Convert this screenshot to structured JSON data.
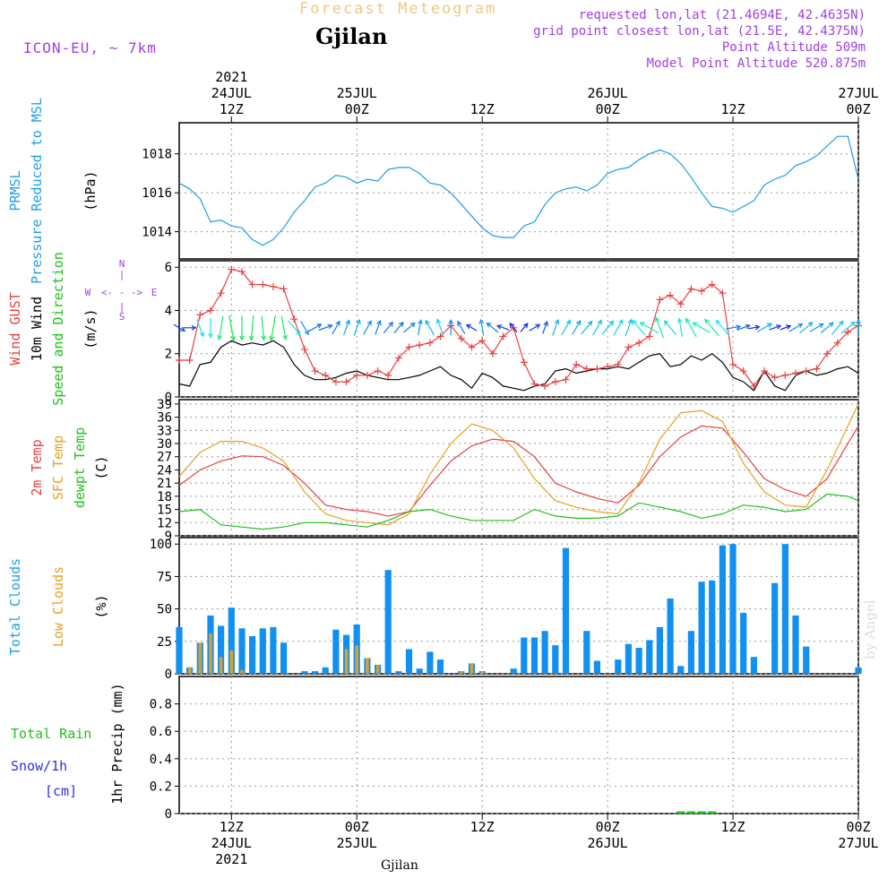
{
  "header": {
    "title": "Forecast Meteogram",
    "location": "Gjilan",
    "model": "ICON-EU, ~ 7km",
    "requested": "requested lon,lat (21.4694E, 42.4635N)",
    "grid_point": "grid point closest lon,lat (21.5E, 42.4375N)",
    "point_altitude": "Point Altitude 509m",
    "model_altitude": "Model Point Altitude 520.875m"
  },
  "footer": {
    "location": "Gjilan",
    "credit": "by Angel"
  },
  "colors": {
    "pressure": "#1e9ee8",
    "gust": "#e84040",
    "wind": "#000000",
    "temp": "#e84040",
    "sfc": "#e8a020",
    "dew": "#20c020",
    "total_cloud": "#1090f0",
    "low_cloud": "#d8a030",
    "rain": "#20c020",
    "snow": "#3030e0",
    "compass": "#a040e0",
    "header_title": "#f0c880",
    "header_info": "#a040e0"
  },
  "compass": {
    "n": "N",
    "s": "S",
    "w": "W",
    "e": "E",
    "arrow_h": "<- - ->"
  },
  "chart_data": [
    {
      "type": "line",
      "title": "Pressure Reduced to MSL",
      "labels": [
        "PRMSL",
        "Pressure Reduced to MSL"
      ],
      "unit": "(hPa)",
      "ylim": [
        1012.6,
        1019.6
      ],
      "yticks": [
        1014,
        1016,
        1018
      ],
      "x_range_hours": [
        -5,
        60
      ],
      "series": [
        {
          "name": "PRMSL",
          "x": [
            -5,
            -4,
            -3,
            -2,
            -1,
            0,
            1,
            2,
            3,
            4,
            5,
            6,
            7,
            8,
            9,
            10,
            11,
            12,
            13,
            14,
            15,
            16,
            17,
            18,
            19,
            20,
            21,
            22,
            23,
            24,
            25,
            26,
            27,
            28,
            29,
            30,
            31,
            32,
            33,
            34,
            35,
            36,
            37,
            38,
            39,
            40,
            41,
            42,
            43,
            44,
            45,
            46,
            47,
            48,
            49,
            50,
            51,
            52,
            53,
            54,
            55,
            56,
            57,
            58,
            59,
            60
          ],
          "values": [
            1016.5,
            1016.2,
            1015.7,
            1014.5,
            1014.6,
            1014.3,
            1014.2,
            1013.6,
            1013.3,
            1013.6,
            1014.2,
            1015.0,
            1015.6,
            1016.3,
            1016.5,
            1016.9,
            1016.8,
            1016.5,
            1016.7,
            1016.6,
            1017.2,
            1017.3,
            1017.3,
            1017.0,
            1016.5,
            1016.4,
            1016.0,
            1015.4,
            1014.8,
            1014.2,
            1013.8,
            1013.7,
            1013.7,
            1014.3,
            1014.5,
            1015.4,
            1016.0,
            1016.2,
            1016.3,
            1016.1,
            1016.4,
            1017.0,
            1017.2,
            1017.3,
            1017.7,
            1018.0,
            1018.2,
            1018.0,
            1017.5,
            1016.8,
            1016.0,
            1015.3,
            1015.2,
            1015.0,
            1015.3,
            1015.6,
            1016.4,
            1016.7,
            1016.9,
            1017.4,
            1017.6,
            1017.9,
            1018.4,
            1018.9,
            1018.9,
            1016.7
          ]
        }
      ]
    },
    {
      "type": "line",
      "title": "Wind",
      "labels": [
        "Wind GUST",
        "10m Wind",
        "Speed and Direction"
      ],
      "unit": "(m/s)",
      "ylim": [
        0,
        6.3
      ],
      "yticks": [
        0,
        2,
        4,
        6
      ],
      "series": [
        {
          "name": "Wind GUST",
          "x": [
            -5,
            -4,
            -3,
            -2,
            -1,
            0,
            1,
            2,
            3,
            4,
            5,
            6,
            7,
            8,
            9,
            10,
            11,
            12,
            13,
            14,
            15,
            16,
            17,
            18,
            19,
            20,
            21,
            22,
            23,
            24,
            25,
            26,
            27,
            28,
            29,
            30,
            31,
            32,
            33,
            34,
            35,
            36,
            37,
            38,
            39,
            40,
            41,
            42,
            43,
            44,
            45,
            46,
            47,
            48,
            49,
            50,
            51,
            52,
            53,
            54,
            55,
            56,
            57,
            58,
            59,
            60
          ],
          "values": [
            1.7,
            1.7,
            3.8,
            4.0,
            4.8,
            5.9,
            5.8,
            5.2,
            5.2,
            5.1,
            5.0,
            3.6,
            2.2,
            1.2,
            1.0,
            0.7,
            0.7,
            1.0,
            1.0,
            1.2,
            1.0,
            1.8,
            2.3,
            2.4,
            2.5,
            2.8,
            3.3,
            2.7,
            2.3,
            2.6,
            2.0,
            2.8,
            3.2,
            1.6,
            0.6,
            0.5,
            0.7,
            0.8,
            1.5,
            1.3,
            1.3,
            1.4,
            1.5,
            2.3,
            2.5,
            2.8,
            4.5,
            4.7,
            4.3,
            5.0,
            4.9,
            5.2,
            4.8,
            1.5,
            1.2,
            0.5,
            1.2,
            0.9,
            1.0,
            1.1,
            1.2,
            1.3,
            2.0,
            2.5,
            3.0,
            3.3
          ]
        },
        {
          "name": "10m Wind",
          "x": [
            -5,
            -4,
            -3,
            -2,
            -1,
            0,
            1,
            2,
            3,
            4,
            5,
            6,
            7,
            8,
            9,
            10,
            11,
            12,
            13,
            14,
            15,
            16,
            17,
            18,
            19,
            20,
            21,
            22,
            23,
            24,
            25,
            26,
            27,
            28,
            29,
            30,
            31,
            32,
            33,
            34,
            35,
            36,
            37,
            38,
            39,
            40,
            41,
            42,
            43,
            44,
            45,
            46,
            47,
            48,
            49,
            50,
            51,
            52,
            53,
            54,
            55,
            56,
            57,
            58,
            59,
            60
          ],
          "values": [
            0.6,
            0.5,
            1.5,
            1.6,
            2.3,
            2.6,
            2.4,
            2.5,
            2.4,
            2.6,
            2.3,
            1.5,
            1.0,
            0.8,
            0.8,
            0.9,
            1.1,
            1.2,
            1.0,
            0.9,
            0.8,
            0.8,
            0.9,
            1.0,
            1.2,
            1.4,
            1.0,
            0.8,
            0.4,
            1.1,
            0.9,
            0.5,
            0.4,
            0.3,
            0.5,
            0.6,
            1.2,
            1.3,
            1.1,
            1.2,
            1.3,
            1.3,
            1.4,
            1.3,
            1.6,
            1.9,
            2.0,
            1.4,
            1.5,
            1.9,
            1.7,
            2.0,
            1.6,
            0.9,
            0.7,
            0.3,
            1.2,
            0.5,
            0.3,
            1.0,
            1.2,
            1.0,
            1.1,
            1.3,
            1.4,
            1.1
          ]
        }
      ],
      "direction_arrows": {
        "x": [
          -5,
          -4,
          -3,
          -2,
          -1,
          0,
          1,
          2,
          3,
          4,
          5,
          6,
          7,
          8,
          9,
          10,
          11,
          12,
          13,
          14,
          15,
          16,
          17,
          18,
          19,
          20,
          21,
          22,
          23,
          24,
          25,
          26,
          27,
          28,
          29,
          30,
          31,
          32,
          33,
          34,
          35,
          36,
          37,
          38,
          39,
          40,
          41,
          42,
          43,
          44,
          45,
          46,
          47,
          48,
          49,
          50,
          51,
          52,
          53,
          54,
          55,
          56,
          57,
          58,
          59,
          60
        ],
        "dir_deg": [
          300,
          270,
          340,
          0,
          10,
          350,
          0,
          5,
          355,
          10,
          350,
          320,
          330,
          240,
          250,
          210,
          200,
          200,
          210,
          200,
          220,
          220,
          230,
          190,
          150,
          160,
          180,
          150,
          120,
          170,
          130,
          110,
          140,
          220,
          240,
          200,
          200,
          210,
          210,
          220,
          210,
          220,
          210,
          200,
          140,
          120,
          160,
          140,
          170,
          150,
          120,
          140,
          140,
          260,
          250,
          260,
          240,
          250,
          250,
          240,
          230,
          240,
          230,
          220,
          230,
          180
        ]
      }
    },
    {
      "type": "line",
      "title": "Temperature",
      "labels": [
        "2m Temp",
        "SFC Temp",
        "dewpt Temp"
      ],
      "unit": "(C)",
      "ylim": [
        9,
        40
      ],
      "yticks": [
        9,
        12,
        15,
        18,
        21,
        24,
        27,
        30,
        33,
        36,
        39
      ],
      "series": [
        {
          "name": "2m Temp",
          "x": [
            -5,
            -3,
            -1,
            1,
            3,
            5,
            7,
            9,
            11,
            13,
            15,
            17,
            19,
            21,
            23,
            25,
            27,
            29,
            31,
            33,
            35,
            37,
            39,
            41,
            43,
            45,
            47,
            49,
            51,
            53,
            55,
            57,
            59,
            60
          ],
          "values": [
            20.5,
            24.0,
            26.0,
            27.2,
            27.0,
            25.0,
            21.0,
            16.0,
            15.0,
            14.5,
            13.5,
            14.5,
            20.5,
            26.0,
            29.5,
            31.0,
            30.5,
            27.0,
            21.0,
            19.0,
            17.5,
            16.5,
            20.5,
            27.0,
            31.5,
            34.0,
            33.5,
            28.0,
            22.0,
            19.5,
            18.0,
            22.0,
            30.0,
            34.0
          ]
        },
        {
          "name": "SFC Temp",
          "x": [
            -5,
            -3,
            -1,
            1,
            3,
            5,
            7,
            9,
            11,
            13,
            15,
            17,
            19,
            21,
            23,
            25,
            27,
            29,
            31,
            33,
            35,
            37,
            39,
            41,
            43,
            45,
            47,
            49,
            51,
            53,
            55,
            57,
            59,
            60
          ],
          "values": [
            22.5,
            28.0,
            30.5,
            30.5,
            29.0,
            26.0,
            19.0,
            14.0,
            12.5,
            12.0,
            11.5,
            14.0,
            23.0,
            30.0,
            34.5,
            33.0,
            29.0,
            22.0,
            17.0,
            15.5,
            14.5,
            14.0,
            21.0,
            31.0,
            37.0,
            37.5,
            35.0,
            25.5,
            19.0,
            16.0,
            15.5,
            24.0,
            34.0,
            39.0
          ]
        },
        {
          "name": "dewpt Temp",
          "x": [
            -5,
            -3,
            -1,
            1,
            3,
            5,
            7,
            9,
            11,
            13,
            15,
            17,
            19,
            21,
            23,
            25,
            27,
            29,
            31,
            33,
            35,
            37,
            39,
            41,
            43,
            45,
            47,
            49,
            51,
            53,
            55,
            57,
            59,
            60
          ],
          "values": [
            14.5,
            15.0,
            11.5,
            11.0,
            10.5,
            11.0,
            12.0,
            12.0,
            11.5,
            11.0,
            12.5,
            14.5,
            15.0,
            13.5,
            12.5,
            12.5,
            12.5,
            15.0,
            13.5,
            13.0,
            13.0,
            13.5,
            16.5,
            15.5,
            14.5,
            13.0,
            14.0,
            16.0,
            15.5,
            14.5,
            15.0,
            18.5,
            18.0,
            17.0
          ]
        }
      ]
    },
    {
      "type": "bar",
      "title": "Clouds",
      "labels": [
        "Total Clouds",
        "Low Clouds"
      ],
      "unit": "(%)",
      "ylim": [
        0,
        105
      ],
      "yticks": [
        0,
        25,
        50,
        75,
        100
      ],
      "x": [
        -5,
        -4,
        -3,
        -2,
        -1,
        0,
        1,
        2,
        3,
        4,
        5,
        6,
        7,
        8,
        9,
        10,
        11,
        12,
        13,
        14,
        15,
        16,
        17,
        18,
        19,
        20,
        21,
        22,
        23,
        24,
        25,
        26,
        27,
        28,
        29,
        30,
        31,
        32,
        33,
        34,
        35,
        36,
        37,
        38,
        39,
        40,
        41,
        42,
        43,
        44,
        45,
        46,
        47,
        48,
        49,
        50,
        51,
        52,
        53,
        54,
        55,
        56,
        57,
        58,
        59,
        60
      ],
      "series": [
        {
          "name": "Total Clouds",
          "values": [
            36,
            5,
            24,
            45,
            37,
            51,
            35,
            29,
            35,
            36,
            24,
            0,
            2,
            2,
            5,
            34,
            30,
            38,
            12,
            7,
            80,
            2,
            19,
            4,
            17,
            11,
            0,
            2,
            8,
            2,
            0,
            0,
            4,
            28,
            28,
            33,
            22,
            97,
            0,
            33,
            10,
            0,
            11,
            23,
            20,
            26,
            36,
            58,
            6,
            33,
            71,
            72,
            99,
            100,
            47,
            13,
            0,
            70,
            100,
            45,
            21,
            0,
            0,
            0,
            0,
            5
          ]
        },
        {
          "name": "Low Clouds",
          "values": [
            0,
            5,
            24,
            31,
            13,
            18,
            3,
            0,
            0,
            0,
            0,
            0,
            0,
            0,
            0,
            0,
            19,
            22,
            12,
            7,
            0,
            0,
            0,
            0,
            0,
            0,
            0,
            2,
            8,
            2,
            0,
            0,
            0,
            0,
            0,
            0,
            0,
            0,
            0,
            0,
            0,
            0,
            0,
            0,
            0,
            0,
            0,
            0,
            0,
            0,
            0,
            0,
            0,
            0,
            0,
            0,
            0,
            0,
            0,
            0,
            0,
            0,
            0,
            0,
            0,
            0
          ]
        }
      ]
    },
    {
      "type": "bar",
      "title": "1hr Precip",
      "labels": [
        "Total Rain",
        "Snow/1h",
        "[cm]"
      ],
      "unit": "1hr Precip (mm)",
      "ylim": [
        0,
        1.0
      ],
      "yticks": [
        "0",
        "0.2",
        "0.4",
        "0.6",
        "0.8"
      ],
      "x": [
        43,
        44,
        45,
        46
      ],
      "series": [
        {
          "name": "Total Rain",
          "values": [
            0.01,
            0.01,
            0.01,
            0.01
          ]
        },
        {
          "name": "Snow/1h",
          "values": [
            0,
            0,
            0,
            0
          ]
        }
      ]
    }
  ],
  "time_axis": {
    "year": "2021",
    "top_labels": [
      {
        "hour": 0,
        "time": "12Z",
        "date": "24JUL",
        "year": "2021"
      },
      {
        "hour": 12,
        "time": "00Z",
        "date": "25JUL"
      },
      {
        "hour": 24,
        "time": "12Z"
      },
      {
        "hour": 36,
        "time": "00Z",
        "date": "26JUL"
      },
      {
        "hour": 48,
        "time": "12Z"
      },
      {
        "hour": 60,
        "time": "00Z",
        "date": "27JUL"
      }
    ],
    "bottom_labels": [
      {
        "hour": 0,
        "time": "12Z",
        "date": "24JUL",
        "year": "2021"
      },
      {
        "hour": 12,
        "time": "00Z",
        "date": "25JUL"
      },
      {
        "hour": 24,
        "time": "12Z"
      },
      {
        "hour": 36,
        "time": "00Z",
        "date": "26JUL"
      },
      {
        "hour": 48,
        "time": "12Z"
      },
      {
        "hour": 60,
        "time": "00Z",
        "date": "27JUL"
      }
    ]
  }
}
